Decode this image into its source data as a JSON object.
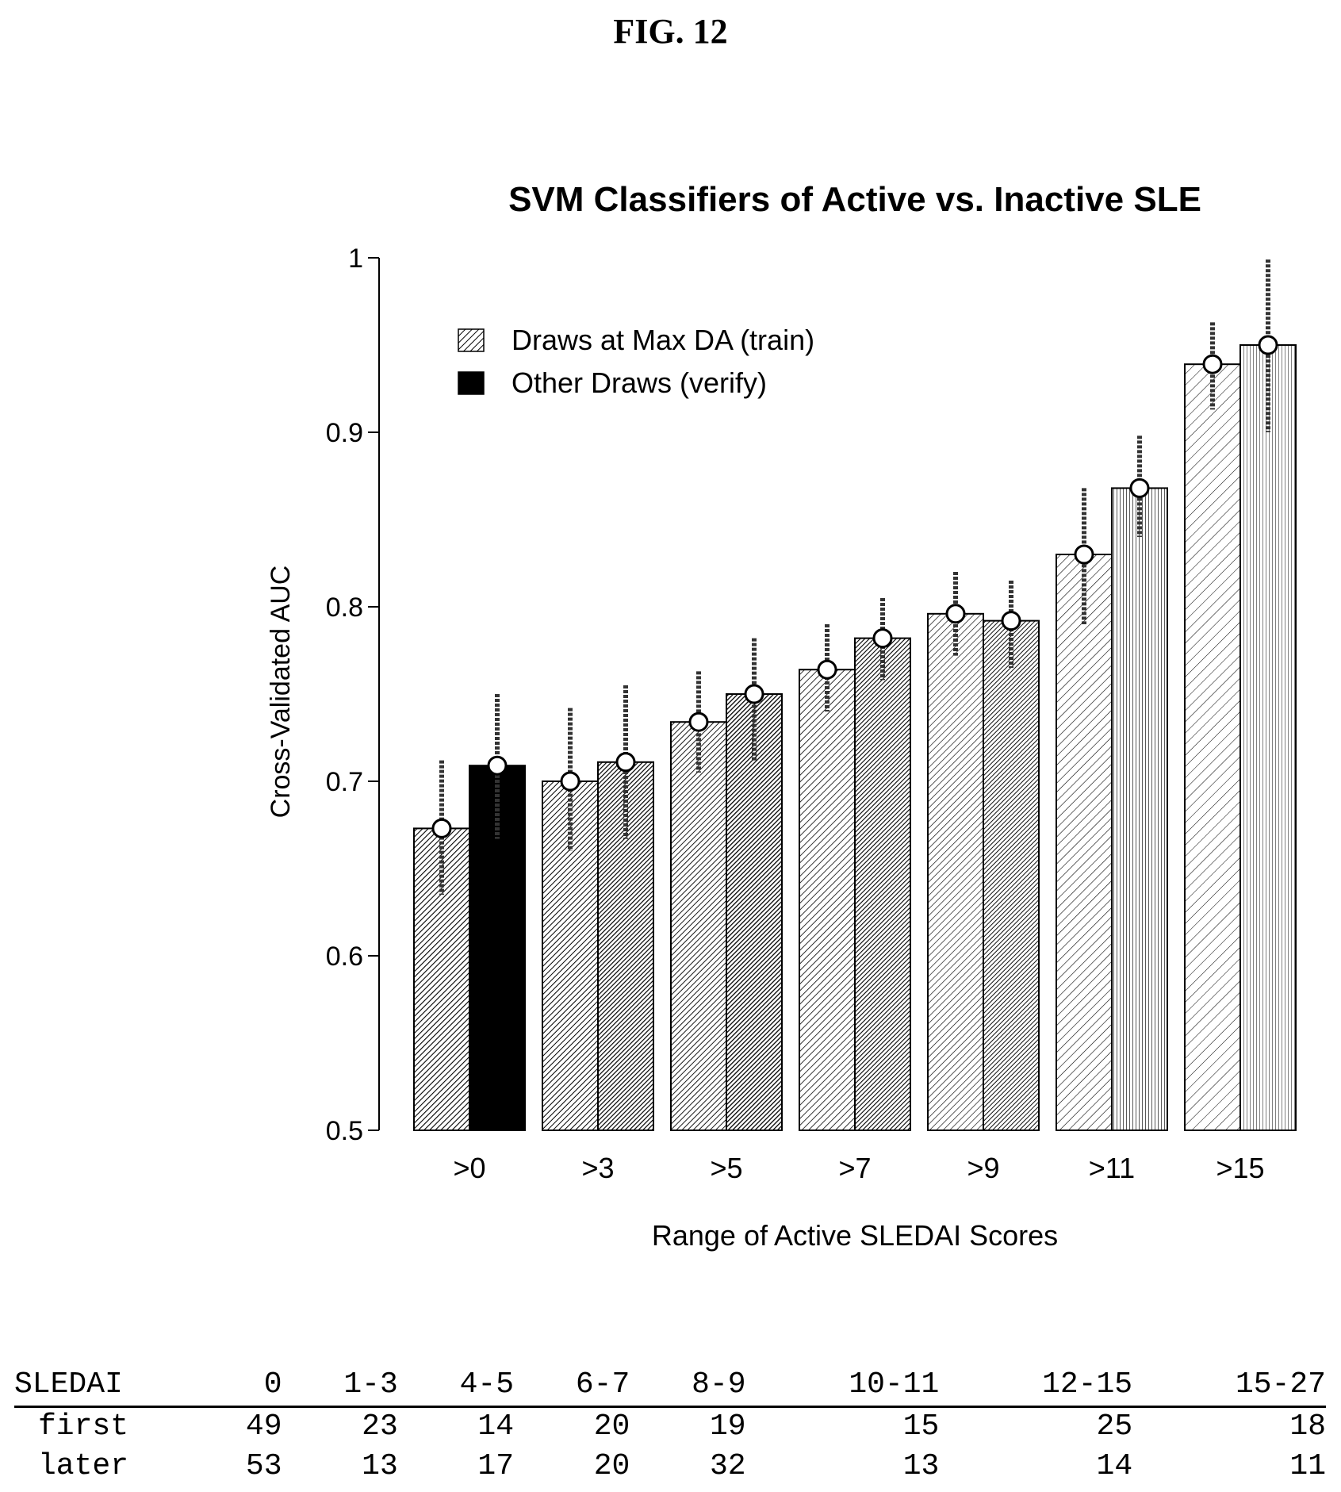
{
  "figure_label": "FIG. 12",
  "chart_data": {
    "type": "bar",
    "title": "SVM Classifiers of Active vs. Inactive SLE",
    "xlabel": "Range of Active SLEDAI Scores",
    "ylabel": "Cross-Validated AUC",
    "ylim": [
      0.5,
      1.0
    ],
    "yticks": [
      "0.5",
      "0.6",
      "0.7",
      "0.8",
      "0.9",
      "1"
    ],
    "categories": [
      ">0",
      ">3",
      ">5",
      ">7",
      ">9",
      ">11",
      ">15"
    ],
    "legend_position": "top-left",
    "series": [
      {
        "name": "Draws at Max DA (train)",
        "values": [
          0.673,
          0.7,
          0.734,
          0.764,
          0.796,
          0.83,
          0.939
        ],
        "err_low": [
          0.635,
          0.66,
          0.705,
          0.74,
          0.772,
          0.79,
          0.913
        ],
        "err_high": [
          0.712,
          0.742,
          0.763,
          0.79,
          0.82,
          0.868,
          0.963
        ]
      },
      {
        "name": "Other Draws (verify)",
        "values": [
          0.709,
          0.711,
          0.75,
          0.782,
          0.792,
          0.868,
          0.95
        ],
        "err_low": [
          0.667,
          0.667,
          0.712,
          0.758,
          0.765,
          0.84,
          0.9
        ],
        "err_high": [
          0.75,
          0.755,
          0.782,
          0.805,
          0.815,
          0.898,
          0.999
        ]
      }
    ]
  },
  "count_table": {
    "header": [
      "SLEDAI",
      "0",
      "1-3",
      "4-5",
      "6-7",
      "8-9",
      "10-11",
      "12-15",
      "15-27"
    ],
    "rows": [
      [
        "first",
        "49",
        "23",
        "14",
        "20",
        "19",
        "15",
        "25",
        "18"
      ],
      [
        "later",
        "53",
        "13",
        "17",
        "20",
        "32",
        "13",
        "14",
        "11"
      ]
    ]
  }
}
